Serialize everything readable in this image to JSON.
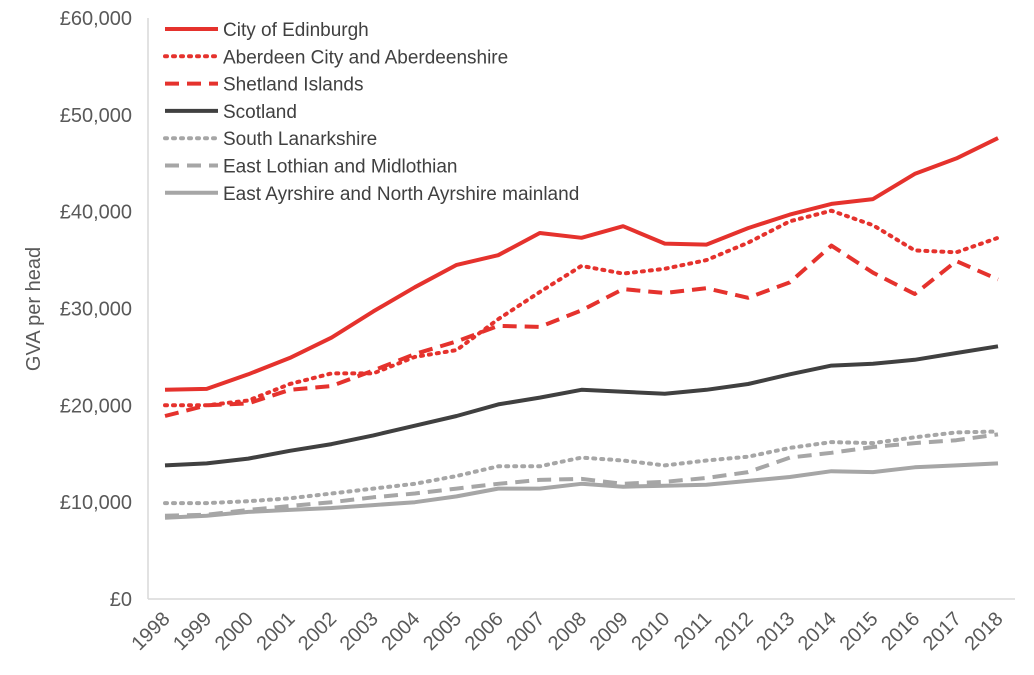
{
  "chart_data": {
    "type": "line",
    "title": "",
    "xlabel": "",
    "ylabel": "GVA per head",
    "ylim": [
      0,
      60000
    ],
    "yticks": [
      0,
      10000,
      20000,
      30000,
      40000,
      50000,
      60000
    ],
    "ytick_labels": [
      "£0",
      "£10,000",
      "£20,000",
      "£30,000",
      "£40,000",
      "£50,000",
      "£60,000"
    ],
    "grid": false,
    "legend_position": "top-left",
    "x": [
      "1998",
      "1999",
      "2000",
      "2001",
      "2002",
      "2003",
      "2004",
      "2005",
      "2006",
      "2007",
      "2008",
      "2009",
      "2010",
      "2011",
      "2012",
      "2013",
      "2014",
      "2015",
      "2016",
      "2017",
      "2018"
    ],
    "series": [
      {
        "name": "City of Edinburgh",
        "color": "#e5322d",
        "dash": "solid",
        "values": [
          21600,
          21700,
          23200,
          24900,
          27000,
          29700,
          32200,
          34500,
          35500,
          37800,
          37300,
          38500,
          36700,
          36600,
          38300,
          39700,
          40800,
          41300,
          43900,
          45500,
          47600
        ]
      },
      {
        "name": "Aberdeen City and Aberdeenshire",
        "color": "#e5322d",
        "dash": "dotted",
        "values": [
          20000,
          20000,
          20500,
          22200,
          23300,
          23300,
          25000,
          25700,
          28900,
          31700,
          34400,
          33600,
          34100,
          35000,
          36800,
          39000,
          40100,
          38600,
          36000,
          35800,
          37300
        ]
      },
      {
        "name": "Shetland Islands",
        "color": "#e5322d",
        "dash": "dashed",
        "values": [
          18900,
          20000,
          20200,
          21600,
          22000,
          23600,
          25300,
          26600,
          28200,
          28100,
          29800,
          32000,
          31600,
          32100,
          31100,
          32700,
          36500,
          33700,
          31500,
          34900,
          33000
        ]
      },
      {
        "name": "Scotland",
        "color": "#404040",
        "dash": "solid",
        "values": [
          13800,
          14000,
          14500,
          15300,
          16000,
          16900,
          17900,
          18900,
          20100,
          20800,
          21600,
          21400,
          21200,
          21600,
          22200,
          23200,
          24100,
          24300,
          24700,
          25400,
          26100
        ]
      },
      {
        "name": "South Lanarkshire",
        "color": "#a6a6a6",
        "dash": "dotted",
        "values": [
          9900,
          9900,
          10100,
          10400,
          10900,
          11400,
          11900,
          12700,
          13700,
          13700,
          14600,
          14300,
          13800,
          14300,
          14700,
          15600,
          16200,
          16100,
          16700,
          17200,
          17300
        ]
      },
      {
        "name": "East Lothian and Midlothian",
        "color": "#a6a6a6",
        "dash": "dashed",
        "values": [
          8600,
          8700,
          9200,
          9600,
          10000,
          10500,
          10900,
          11400,
          11900,
          12300,
          12400,
          11900,
          12100,
          12500,
          13100,
          14600,
          15100,
          15700,
          16100,
          16400,
          17000
        ]
      },
      {
        "name": "East Ayrshire and North Ayrshire mainland",
        "color": "#a6a6a6",
        "dash": "solid",
        "values": [
          8400,
          8600,
          9000,
          9200,
          9400,
          9700,
          10000,
          10600,
          11400,
          11400,
          11900,
          11600,
          11700,
          11800,
          12200,
          12600,
          13200,
          13100,
          13600,
          13800,
          14000
        ]
      }
    ]
  }
}
